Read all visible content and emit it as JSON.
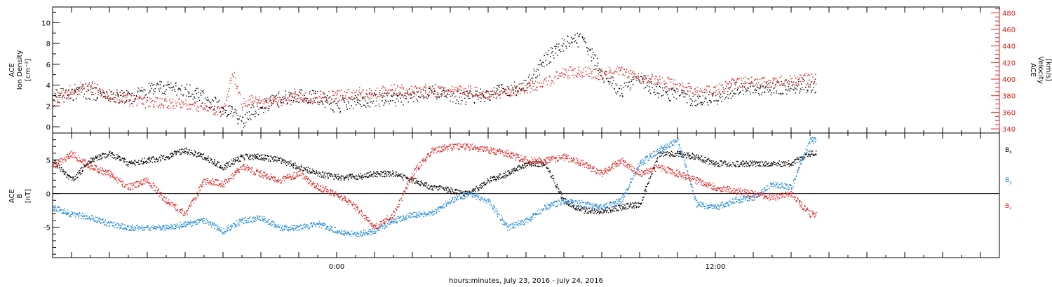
{
  "chart_data": [
    {
      "type": "scatter",
      "title": "",
      "xlabel": "hours:minutes, July 23, 2016 - July 24, 2016",
      "x_range_hours": [
        -15,
        35
      ],
      "x_tick_labels": [
        {
          "hour": 0,
          "label": "0:00"
        },
        {
          "hour": 20,
          "label": "12:00"
        }
      ],
      "left_axis": {
        "label_lines": [
          "ACE",
          "Ion Density",
          "[cm⁻³]"
        ],
        "ylim": [
          -0.6,
          11.5
        ],
        "ticks": [
          0,
          2,
          4,
          6,
          8,
          10
        ],
        "color": "#000000"
      },
      "right_axis": {
        "label_lines": [
          "ACE",
          "Velocity",
          "[km/s]"
        ],
        "ylim": [
          335,
          487
        ],
        "ticks": [
          340,
          360,
          380,
          400,
          420,
          440,
          460,
          480
        ],
        "color": "#e02020"
      },
      "series": [
        {
          "name": "",
          "axis": "left",
          "color": "#000000",
          "x": [
            -15,
            -14,
            -13,
            -12,
            -11,
            -10,
            -9,
            -8,
            -7,
            -6,
            -5.5,
            -5.2,
            -5,
            -4.5,
            -4,
            -3,
            -2,
            -1,
            0,
            1,
            2,
            3,
            4,
            5,
            6,
            7,
            8,
            9,
            10,
            11,
            12,
            13,
            14,
            15,
            16,
            17,
            18,
            19,
            20,
            21,
            22,
            23,
            24,
            25
          ],
          "y": [
            3,
            3.2,
            3.3,
            3,
            2.8,
            3.5,
            3.8,
            3.6,
            2.8,
            1.8,
            1.5,
            0.5,
            0.3,
            1.5,
            2,
            2.8,
            3.1,
            2.9,
            2,
            2.5,
            2.7,
            2.6,
            3.1,
            3.5,
            3,
            2.8,
            3.2,
            3.5,
            4,
            6.5,
            8,
            8.5,
            5,
            3.5,
            4.5,
            3.5,
            3,
            2.6,
            2.8,
            3.6,
            3.8,
            3.7,
            3.9,
            4
          ]
        },
        {
          "name": "",
          "axis": "right",
          "color": "#e02020",
          "x": [
            -15,
            -14,
            -13,
            -12,
            -11,
            -10,
            -9,
            -8,
            -7,
            -6,
            -5.5,
            -5,
            -4.5,
            -4,
            -3,
            -2,
            -1,
            0,
            1,
            2,
            3,
            4,
            5,
            6,
            7,
            8,
            9,
            10,
            11,
            12,
            13,
            14,
            15,
            16,
            17,
            18,
            19,
            20,
            21,
            22,
            23,
            24,
            25
          ],
          "y": [
            373,
            387,
            392,
            380,
            375,
            372,
            372,
            371,
            366,
            360,
            410,
            370,
            375,
            372,
            372,
            379,
            377,
            380,
            383,
            384,
            388,
            386,
            385,
            385,
            386,
            382,
            385,
            390,
            395,
            408,
            410,
            406,
            410,
            402,
            399,
            392,
            387,
            386,
            396,
            396,
            397,
            398,
            401
          ]
        }
      ]
    },
    {
      "type": "scatter",
      "title": "",
      "xlabel": "hours:minutes, July 23, 2016 - July 24, 2016",
      "x_range_hours": [
        -15,
        35
      ],
      "left_axis": {
        "label_lines": [
          "ACE",
          "B",
          "[nT]"
        ],
        "ylim": [
          -9.5,
          9
        ],
        "ticks": [
          -5,
          0,
          5
        ],
        "color": "#000000"
      },
      "zero_line": true,
      "series": [
        {
          "name": "Bx",
          "color": "#000000",
          "x": [
            -15,
            -14,
            -13,
            -12,
            -11,
            -10,
            -9,
            -8,
            -7,
            -6,
            -5,
            -4,
            -3,
            -2,
            -1,
            0,
            1,
            2,
            3,
            4,
            5,
            6,
            7,
            8,
            9,
            10,
            11,
            12,
            13,
            14,
            15,
            16,
            17,
            18,
            19,
            20,
            21,
            22,
            23,
            24,
            25
          ],
          "y": [
            5,
            2,
            5,
            6,
            4.5,
            5,
            5.5,
            6.5,
            5.5,
            4,
            5.5,
            5.5,
            5,
            4,
            3,
            2.5,
            2.5,
            3,
            3,
            2,
            1,
            0.5,
            0,
            2,
            3,
            4.5,
            4.5,
            -1,
            -2.5,
            -2.5,
            -2,
            -1.5,
            6,
            6,
            5.5,
            4.5,
            4.5,
            4.5,
            4.5,
            4.5,
            6
          ]
        },
        {
          "name": "By",
          "color": "#1e88d8",
          "x": [
            -15,
            -14,
            -13,
            -12,
            -11,
            -10,
            -9,
            -8,
            -7,
            -6,
            -5,
            -4,
            -3,
            -2,
            -1,
            0,
            1,
            2,
            3,
            4,
            5,
            6,
            7,
            8,
            9,
            10,
            11,
            12,
            13,
            14,
            15,
            16,
            17,
            18,
            19,
            20,
            21,
            22,
            23,
            24,
            25
          ],
          "y": [
            -2,
            -3,
            -3.5,
            -4.5,
            -5,
            -5,
            -5,
            -4.5,
            -4,
            -5.5,
            -4,
            -3.5,
            -5,
            -5,
            -4.5,
            -5.5,
            -6,
            -5.5,
            -4,
            -3,
            -3,
            -1,
            0,
            -1,
            -5,
            -4,
            -2,
            -1,
            -1.5,
            -2,
            -1,
            4.5,
            6.5,
            8,
            -1.5,
            -2,
            -1,
            -0.5,
            1.5,
            1,
            8
          ]
        },
        {
          "name": "Bz",
          "color": "#e02020",
          "x": [
            -15,
            -14,
            -13,
            -12,
            -11,
            -10,
            -9,
            -8,
            -7,
            -6,
            -5,
            -4,
            -3,
            -2,
            -1,
            0,
            1,
            2,
            3,
            4,
            5,
            6,
            7,
            8,
            9,
            10,
            11,
            12,
            13,
            14,
            15,
            16,
            17,
            18,
            19,
            20,
            21,
            22,
            23,
            24,
            25
          ],
          "y": [
            4,
            6,
            4,
            3,
            1,
            2,
            -1,
            -3,
            2,
            1.5,
            4,
            3,
            2,
            3,
            1,
            0,
            -2,
            -5,
            -3,
            3,
            6.5,
            7,
            7,
            6.5,
            6,
            5,
            5,
            5.5,
            4.5,
            3,
            5,
            3,
            4,
            3,
            2,
            1,
            0.5,
            0,
            -0.5,
            0,
            -3
          ]
        }
      ]
    }
  ]
}
